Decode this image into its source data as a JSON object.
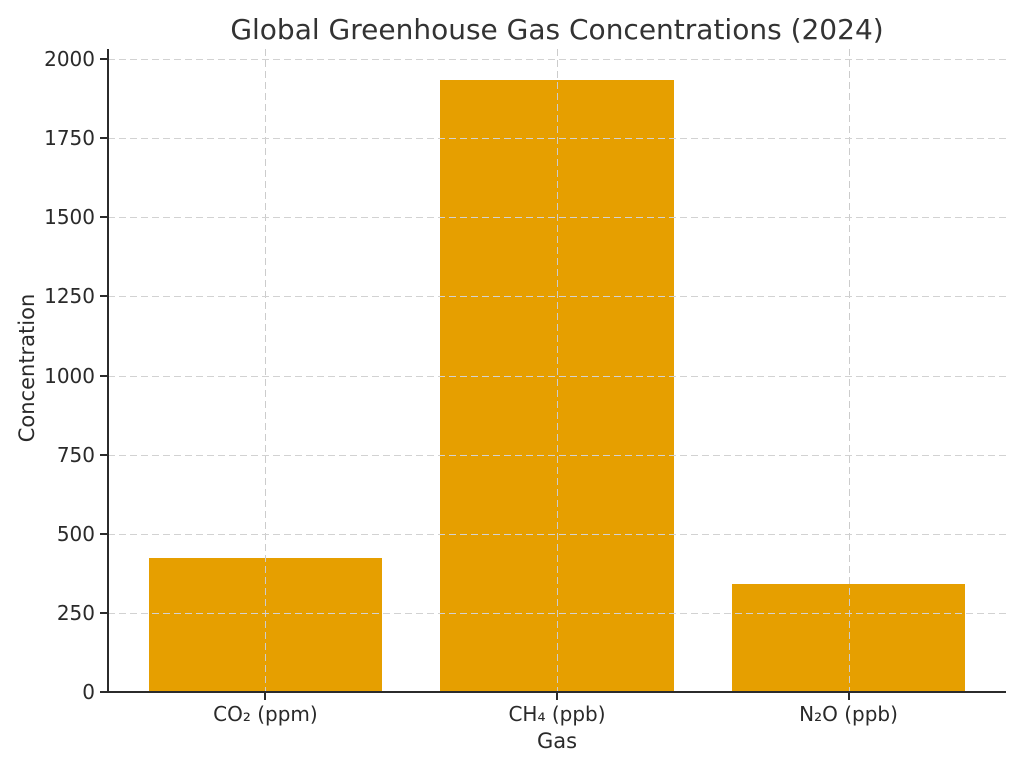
{
  "chart_data": {
    "type": "bar",
    "title": "Global Greenhouse Gas Concentrations (2024)",
    "xlabel": "Gas",
    "ylabel": "Concentration",
    "categories": [
      "CO₂ (ppm)",
      "CH₄ (ppb)",
      "N₂O (ppb)"
    ],
    "values": [
      425,
      1935,
      340
    ],
    "yticks": [
      0,
      250,
      500,
      750,
      1000,
      1250,
      1500,
      1750,
      2000
    ],
    "ylim": [
      0,
      2032
    ],
    "grid": "dashed, horizontal and vertical, drawn over bars",
    "legend_position": "none",
    "colors": {
      "bar": "#E69F00",
      "background": "#ffffff",
      "grid": "#d2d2d2",
      "axis": "#2b2b2b",
      "text": "#2a2a2a",
      "title_text": "#333333"
    }
  }
}
